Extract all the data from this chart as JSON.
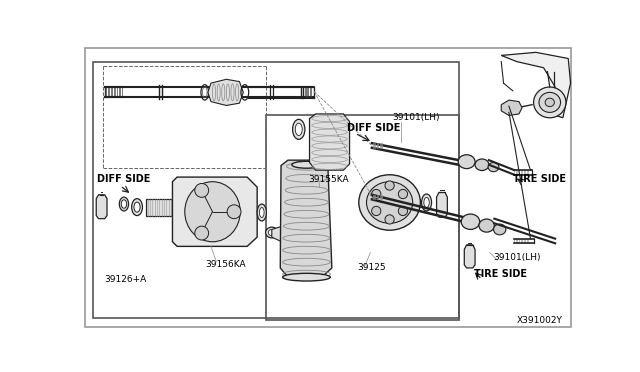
{
  "bg_color": "#ffffff",
  "border_color": "#999999",
  "line_color": "#222222",
  "part_number": "X391002Y",
  "labels": {
    "diff_side_left": "DIFF SIDE",
    "diff_side_right": "DIFF SIDE",
    "tire_side_right_top": "TIRE SIDE",
    "tire_side_right_bottom": "TIRE SIDE",
    "part_39101_lh_top": "39101(LH)",
    "part_39101_lh_bottom": "39101(LH)",
    "part_39155ka": "39155KA",
    "part_39156ka": "39156KA",
    "part_39126a": "39126+A",
    "part_39125": "39125"
  },
  "fig_width": 6.4,
  "fig_height": 3.72,
  "dpi": 100
}
